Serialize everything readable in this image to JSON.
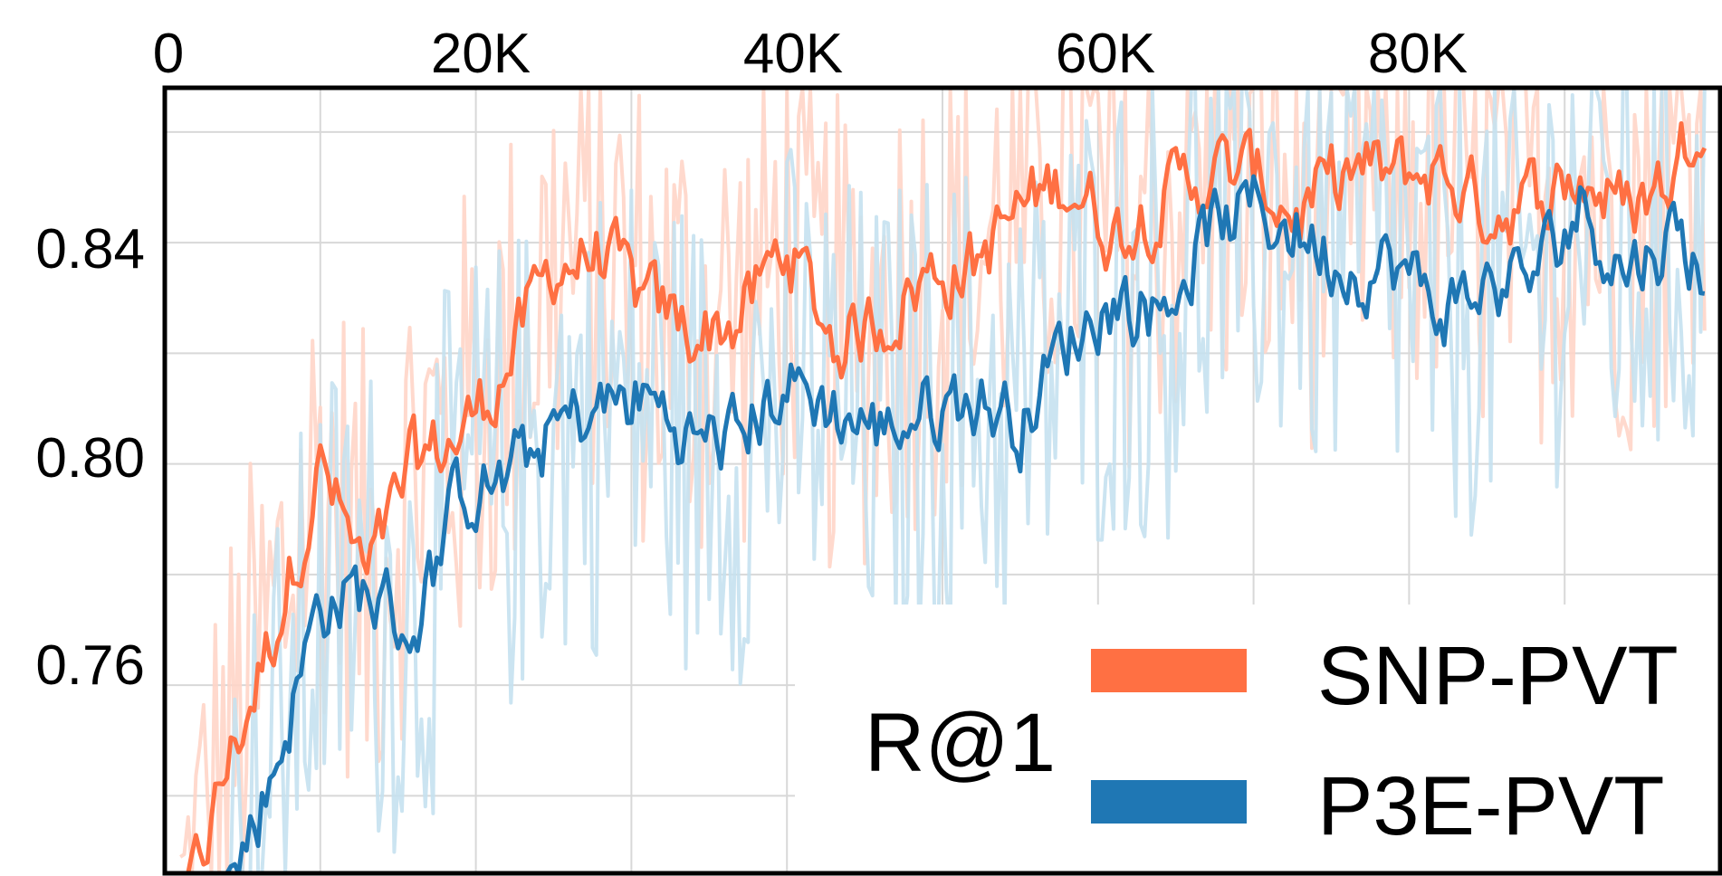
{
  "chart_data": {
    "type": "line",
    "title": "",
    "xlabel": "",
    "ylabel": "",
    "xlim": [
      0,
      100000
    ],
    "ylim": [
      0.726,
      0.868
    ],
    "x_ticks": [
      0,
      20000,
      40000,
      60000,
      80000
    ],
    "x_tick_labels": [
      "0",
      "20K",
      "40K",
      "60K",
      "80K"
    ],
    "x_axis_position": "top",
    "y_ticks": [
      0.76,
      0.8,
      0.84
    ],
    "y_tick_labels": [
      "0.76",
      "0.80",
      "0.84"
    ],
    "grid": true,
    "legend": {
      "title": "R@1",
      "position": "bottom-right"
    },
    "series": [
      {
        "name": "SNP-PVT",
        "color": "#ff7043",
        "raw_color": "#ffd5c8",
        "x": [
          1000,
          4000,
          7000,
          10000,
          13000,
          16000,
          19000,
          22000,
          25000,
          28000,
          31000,
          34000,
          37000,
          40000,
          43000,
          46000,
          49000,
          52000,
          55000,
          58000,
          61000,
          64000,
          67000,
          70000,
          73000,
          76000,
          79000,
          82000,
          85000,
          88000,
          91000,
          94000,
          97000,
          99000
        ],
        "values": [
          0.715,
          0.745,
          0.77,
          0.8,
          0.778,
          0.8,
          0.805,
          0.818,
          0.836,
          0.838,
          0.828,
          0.824,
          0.826,
          0.84,
          0.822,
          0.826,
          0.834,
          0.836,
          0.846,
          0.852,
          0.842,
          0.848,
          0.853,
          0.852,
          0.845,
          0.853,
          0.852,
          0.853,
          0.846,
          0.848,
          0.852,
          0.846,
          0.852,
          0.868
        ]
      },
      {
        "name": "P3E-PVT",
        "color": "#1f77b4",
        "raw_color": "#c5e1ef",
        "x": [
          4000,
          7000,
          10000,
          13000,
          16000,
          19000,
          22000,
          25000,
          28000,
          31000,
          34000,
          37000,
          40000,
          43000,
          46000,
          49000,
          52000,
          55000,
          58000,
          61000,
          64000,
          67000,
          70000,
          73000,
          76000,
          79000,
          82000,
          85000,
          88000,
          91000,
          94000,
          97000,
          99000
        ],
        "values": [
          0.722,
          0.745,
          0.775,
          0.777,
          0.77,
          0.795,
          0.797,
          0.806,
          0.81,
          0.812,
          0.804,
          0.805,
          0.815,
          0.81,
          0.806,
          0.81,
          0.812,
          0.808,
          0.822,
          0.83,
          0.828,
          0.842,
          0.846,
          0.842,
          0.836,
          0.836,
          0.828,
          0.832,
          0.834,
          0.847,
          0.835,
          0.842,
          0.835
        ]
      }
    ]
  }
}
